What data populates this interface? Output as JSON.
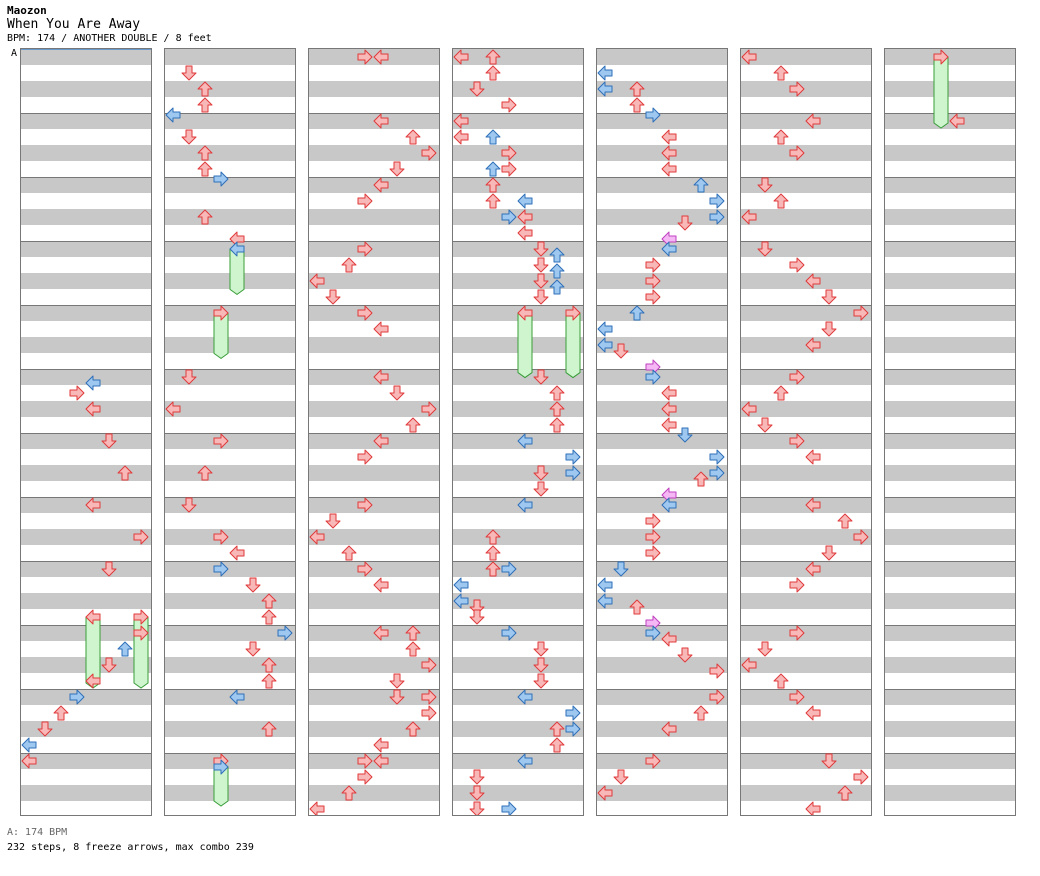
{
  "song": {
    "artist": "Maozon",
    "title": "When You Are Away",
    "info": "BPM: 174 / ANOTHER DOUBLE / 8 feet"
  },
  "bpm_marker": "A",
  "footer": {
    "bpm_legend": "A: 174 BPM",
    "stats": "232 steps, 8 freeze arrows, max combo 239"
  },
  "colors": {
    "red_fill": "#f8b8b8",
    "red_stroke": "#e03a3a",
    "blue_fill": "#9ec8f0",
    "blue_stroke": "#2f6fb8",
    "pink_fill": "#f5b8f5",
    "pink_stroke": "#c040c0",
    "freeze_fill": "#cff5cf",
    "freeze_stroke": "#3a9e3a",
    "band": "#c8c8c8"
  },
  "chart": {
    "columns": 7,
    "measures_per_column": 12,
    "lanes": 8,
    "lane_direction_names": [
      "left",
      "down",
      "up",
      "right",
      "left",
      "down",
      "up",
      "right"
    ],
    "notes": [
      [
        0,
        11,
        0,
        "red"
      ],
      [
        0,
        10.75,
        0,
        "blue"
      ],
      [
        0,
        10.5,
        1,
        "red"
      ],
      [
        0,
        10.25,
        2,
        "red"
      ],
      [
        0,
        10,
        3,
        "blue"
      ],
      [
        0,
        9.75,
        4,
        "red"
      ],
      [
        0,
        9.5,
        5,
        "red"
      ],
      [
        0,
        9.25,
        6,
        "blue"
      ],
      [
        0,
        9,
        7,
        "red"
      ],
      [
        0,
        8.75,
        4,
        "red"
      ],
      [
        0,
        8.75,
        7,
        "red"
      ],
      [
        0,
        8,
        5,
        "red"
      ],
      [
        0,
        7.5,
        7,
        "red"
      ],
      [
        0,
        7,
        4,
        "red"
      ],
      [
        0,
        6.5,
        6,
        "red"
      ],
      [
        0,
        6,
        5,
        "red"
      ],
      [
        0,
        5.5,
        4,
        "red"
      ],
      [
        0,
        5.25,
        3,
        "red"
      ],
      [
        0,
        5.1,
        4,
        "blue"
      ],
      [
        1,
        0.25,
        1,
        "red"
      ],
      [
        1,
        0.5,
        2,
        "red"
      ],
      [
        1,
        0.75,
        2,
        "red"
      ],
      [
        1,
        0.9,
        0,
        "blue"
      ],
      [
        1,
        1.25,
        1,
        "red"
      ],
      [
        1,
        1.5,
        2,
        "red"
      ],
      [
        1,
        1.75,
        2,
        "red"
      ],
      [
        1,
        1.9,
        3,
        "blue"
      ],
      [
        1,
        2.5,
        2,
        "red"
      ],
      [
        1,
        2.85,
        4,
        "red"
      ],
      [
        1,
        3,
        4,
        "blue"
      ],
      [
        1,
        4,
        3,
        "red"
      ],
      [
        1,
        5,
        1,
        "red"
      ],
      [
        1,
        5.5,
        0,
        "red"
      ],
      [
        1,
        6,
        3,
        "red"
      ],
      [
        1,
        6.5,
        2,
        "red"
      ],
      [
        1,
        7,
        1,
        "red"
      ],
      [
        1,
        7.5,
        3,
        "red"
      ],
      [
        1,
        7.75,
        4,
        "red"
      ],
      [
        1,
        8,
        3,
        "blue"
      ],
      [
        1,
        8.25,
        5,
        "red"
      ],
      [
        1,
        8.5,
        6,
        "red"
      ],
      [
        1,
        8.75,
        6,
        "red"
      ],
      [
        1,
        9,
        7,
        "blue"
      ],
      [
        1,
        9.25,
        5,
        "red"
      ],
      [
        1,
        9.5,
        6,
        "red"
      ],
      [
        1,
        9.75,
        6,
        "red"
      ],
      [
        1,
        10,
        4,
        "blue"
      ],
      [
        1,
        10.5,
        6,
        "red"
      ],
      [
        1,
        11,
        3,
        "red"
      ],
      [
        1,
        11.1,
        3,
        "blue"
      ],
      [
        2,
        0,
        3,
        "red"
      ],
      [
        2,
        0,
        4,
        "red"
      ],
      [
        2,
        1,
        4,
        "red"
      ],
      [
        2,
        1.25,
        6,
        "red"
      ],
      [
        2,
        1.5,
        7,
        "red"
      ],
      [
        2,
        1.75,
        5,
        "red"
      ],
      [
        2,
        2,
        4,
        "red"
      ],
      [
        2,
        2.25,
        3,
        "red"
      ],
      [
        2,
        3,
        3,
        "red"
      ],
      [
        2,
        3.25,
        2,
        "red"
      ],
      [
        2,
        3.5,
        0,
        "red"
      ],
      [
        2,
        3.75,
        1,
        "red"
      ],
      [
        2,
        4,
        3,
        "red"
      ],
      [
        2,
        4.25,
        4,
        "red"
      ],
      [
        2,
        5,
        4,
        "red"
      ],
      [
        2,
        5.25,
        5,
        "red"
      ],
      [
        2,
        5.5,
        7,
        "red"
      ],
      [
        2,
        5.75,
        6,
        "red"
      ],
      [
        2,
        6,
        4,
        "red"
      ],
      [
        2,
        6.25,
        3,
        "red"
      ],
      [
        2,
        7,
        3,
        "red"
      ],
      [
        2,
        7.25,
        1,
        "red"
      ],
      [
        2,
        7.5,
        0,
        "red"
      ],
      [
        2,
        7.75,
        2,
        "red"
      ],
      [
        2,
        8,
        3,
        "red"
      ],
      [
        2,
        8.25,
        4,
        "red"
      ],
      [
        2,
        9,
        4,
        "red"
      ],
      [
        2,
        9,
        6,
        "red"
      ],
      [
        2,
        9.25,
        6,
        "red"
      ],
      [
        2,
        9.5,
        7,
        "red"
      ],
      [
        2,
        9.75,
        5,
        "red"
      ],
      [
        2,
        10,
        5,
        "red"
      ],
      [
        2,
        10,
        7,
        "red"
      ],
      [
        2,
        10.25,
        7,
        "red"
      ],
      [
        2,
        10.5,
        6,
        "red"
      ],
      [
        2,
        10.75,
        4,
        "red"
      ],
      [
        2,
        11,
        3,
        "red"
      ],
      [
        2,
        11,
        4,
        "red"
      ],
      [
        2,
        11.25,
        3,
        "red"
      ],
      [
        2,
        11.5,
        2,
        "red"
      ],
      [
        2,
        11.75,
        0,
        "red"
      ],
      [
        3,
        0,
        0,
        "red"
      ],
      [
        3,
        0,
        2,
        "red"
      ],
      [
        3,
        0.25,
        2,
        "red"
      ],
      [
        3,
        0.5,
        1,
        "red"
      ],
      [
        3,
        0.75,
        3,
        "red"
      ],
      [
        3,
        1,
        0,
        "red"
      ],
      [
        3,
        1.25,
        0,
        "red"
      ],
      [
        3,
        1.25,
        2,
        "blue"
      ],
      [
        3,
        1.5,
        3,
        "red"
      ],
      [
        3,
        1.75,
        2,
        "blue"
      ],
      [
        3,
        1.75,
        3,
        "red"
      ],
      [
        3,
        2,
        2,
        "red"
      ],
      [
        3,
        2.25,
        2,
        "red"
      ],
      [
        3,
        2.25,
        4,
        "blue"
      ],
      [
        3,
        2.5,
        3,
        "blue"
      ],
      [
        3,
        2.5,
        4,
        "red"
      ],
      [
        3,
        2.75,
        4,
        "red"
      ],
      [
        3,
        3,
        5,
        "red"
      ],
      [
        3,
        3.1,
        6,
        "blue"
      ],
      [
        3,
        3.25,
        5,
        "red"
      ],
      [
        3,
        3.35,
        6,
        "blue"
      ],
      [
        3,
        3.5,
        5,
        "red"
      ],
      [
        3,
        3.6,
        6,
        "blue"
      ],
      [
        3,
        3.75,
        5,
        "red"
      ],
      [
        3,
        4,
        4,
        "red"
      ],
      [
        3,
        4,
        7,
        "red"
      ],
      [
        3,
        5,
        5,
        "red"
      ],
      [
        3,
        5.25,
        6,
        "red"
      ],
      [
        3,
        5.5,
        6,
        "red"
      ],
      [
        3,
        5.75,
        6,
        "red"
      ],
      [
        3,
        6,
        4,
        "blue"
      ],
      [
        3,
        6.25,
        7,
        "blue"
      ],
      [
        3,
        6.5,
        7,
        "blue"
      ],
      [
        3,
        6.5,
        5,
        "red"
      ],
      [
        3,
        6.75,
        5,
        "red"
      ],
      [
        3,
        7,
        4,
        "blue"
      ],
      [
        3,
        7.5,
        2,
        "red"
      ],
      [
        3,
        7.75,
        2,
        "red"
      ],
      [
        3,
        8,
        2,
        "red"
      ],
      [
        3,
        8,
        3,
        "blue"
      ],
      [
        3,
        8.25,
        0,
        "blue"
      ],
      [
        3,
        8.5,
        0,
        "blue"
      ],
      [
        3,
        8.6,
        1,
        "red"
      ],
      [
        3,
        8.75,
        1,
        "red"
      ],
      [
        3,
        9,
        3,
        "blue"
      ],
      [
        3,
        9.25,
        5,
        "red"
      ],
      [
        3,
        9.5,
        5,
        "red"
      ],
      [
        3,
        9.75,
        5,
        "red"
      ],
      [
        3,
        10,
        4,
        "blue"
      ],
      [
        3,
        10.25,
        7,
        "blue"
      ],
      [
        3,
        10.5,
        7,
        "blue"
      ],
      [
        3,
        10.5,
        6,
        "red"
      ],
      [
        3,
        10.75,
        6,
        "red"
      ],
      [
        3,
        11,
        4,
        "blue"
      ],
      [
        3,
        11.25,
        1,
        "red"
      ],
      [
        3,
        11.5,
        1,
        "red"
      ],
      [
        3,
        11.75,
        1,
        "red"
      ],
      [
        3,
        12,
        3,
        "blue"
      ],
      [
        4,
        0.25,
        0,
        "blue"
      ],
      [
        4,
        0.5,
        0,
        "blue"
      ],
      [
        4,
        0.5,
        2,
        "red"
      ],
      [
        4,
        0.75,
        2,
        "red"
      ],
      [
        4,
        0.9,
        3,
        "blue"
      ],
      [
        4,
        1.25,
        4,
        "red"
      ],
      [
        4,
        1.5,
        4,
        "red"
      ],
      [
        4,
        1.75,
        4,
        "red"
      ],
      [
        4,
        2,
        6,
        "blue"
      ],
      [
        4,
        2.25,
        7,
        "blue"
      ],
      [
        4,
        2.5,
        7,
        "blue"
      ],
      [
        4,
        2.6,
        5,
        "red"
      ],
      [
        4,
        2.85,
        4,
        "pink"
      ],
      [
        4,
        3,
        4,
        "blue"
      ],
      [
        4,
        3.25,
        3,
        "red"
      ],
      [
        4,
        3.5,
        3,
        "red"
      ],
      [
        4,
        3.75,
        3,
        "red"
      ],
      [
        4,
        4,
        2,
        "blue"
      ],
      [
        4,
        4.25,
        0,
        "blue"
      ],
      [
        4,
        4.5,
        0,
        "blue"
      ],
      [
        4,
        4.6,
        1,
        "red"
      ],
      [
        4,
        4.85,
        3,
        "pink"
      ],
      [
        4,
        5,
        3,
        "blue"
      ],
      [
        4,
        5.25,
        4,
        "red"
      ],
      [
        4,
        5.5,
        4,
        "red"
      ],
      [
        4,
        5.75,
        4,
        "red"
      ],
      [
        4,
        5.9,
        5,
        "blue"
      ],
      [
        4,
        6.25,
        7,
        "blue"
      ],
      [
        4,
        6.5,
        7,
        "blue"
      ],
      [
        4,
        6.6,
        6,
        "red"
      ],
      [
        4,
        6.85,
        4,
        "pink"
      ],
      [
        4,
        7,
        4,
        "blue"
      ],
      [
        4,
        7.25,
        3,
        "red"
      ],
      [
        4,
        7.5,
        3,
        "red"
      ],
      [
        4,
        7.75,
        3,
        "red"
      ],
      [
        4,
        8,
        1,
        "blue"
      ],
      [
        4,
        8.25,
        0,
        "blue"
      ],
      [
        4,
        8.5,
        0,
        "blue"
      ],
      [
        4,
        8.6,
        2,
        "red"
      ],
      [
        4,
        8.85,
        3,
        "pink"
      ],
      [
        4,
        9,
        3,
        "blue"
      ],
      [
        4,
        9.1,
        4,
        "red"
      ],
      [
        4,
        9.35,
        5,
        "red"
      ],
      [
        4,
        9.6,
        7,
        "red"
      ],
      [
        4,
        10,
        7,
        "red"
      ],
      [
        4,
        10.25,
        6,
        "red"
      ],
      [
        4,
        10.5,
        4,
        "red"
      ],
      [
        4,
        11,
        3,
        "red"
      ],
      [
        4,
        11.25,
        1,
        "red"
      ],
      [
        4,
        11.5,
        0,
        "red"
      ],
      [
        5,
        0,
        0,
        "red"
      ],
      [
        5,
        0.25,
        2,
        "red"
      ],
      [
        5,
        0.5,
        3,
        "red"
      ],
      [
        5,
        1,
        4,
        "red"
      ],
      [
        5,
        1.25,
        2,
        "red"
      ],
      [
        5,
        1.5,
        3,
        "red"
      ],
      [
        5,
        2,
        1,
        "red"
      ],
      [
        5,
        2.25,
        2,
        "red"
      ],
      [
        5,
        2.5,
        0,
        "red"
      ],
      [
        5,
        3,
        1,
        "red"
      ],
      [
        5,
        3.25,
        3,
        "red"
      ],
      [
        5,
        3.5,
        4,
        "red"
      ],
      [
        5,
        3.75,
        5,
        "red"
      ],
      [
        5,
        4,
        7,
        "red"
      ],
      [
        5,
        4.25,
        5,
        "red"
      ],
      [
        5,
        4.5,
        4,
        "red"
      ],
      [
        5,
        5,
        3,
        "red"
      ],
      [
        5,
        5.25,
        2,
        "red"
      ],
      [
        5,
        5.5,
        0,
        "red"
      ],
      [
        5,
        5.75,
        1,
        "red"
      ],
      [
        5,
        6,
        3,
        "red"
      ],
      [
        5,
        6.25,
        4,
        "red"
      ],
      [
        5,
        7,
        4,
        "red"
      ],
      [
        5,
        7.25,
        6,
        "red"
      ],
      [
        5,
        7.5,
        7,
        "red"
      ],
      [
        5,
        7.75,
        5,
        "red"
      ],
      [
        5,
        8,
        4,
        "red"
      ],
      [
        5,
        8.25,
        3,
        "red"
      ],
      [
        5,
        9,
        3,
        "red"
      ],
      [
        5,
        9.25,
        1,
        "red"
      ],
      [
        5,
        9.5,
        0,
        "red"
      ],
      [
        5,
        9.75,
        2,
        "red"
      ],
      [
        5,
        10,
        3,
        "red"
      ],
      [
        5,
        10.25,
        4,
        "red"
      ],
      [
        5,
        11,
        5,
        "red"
      ],
      [
        5,
        11.25,
        7,
        "red"
      ],
      [
        5,
        11.5,
        6,
        "red"
      ],
      [
        5,
        11.75,
        4,
        "red"
      ],
      [
        6,
        0,
        3,
        "red"
      ],
      [
        6,
        1,
        4,
        "red"
      ]
    ],
    "freezes": [
      [
        0,
        8.75,
        9.75,
        4
      ],
      [
        0,
        8.75,
        9.75,
        7
      ],
      [
        1,
        3,
        3.6,
        4
      ],
      [
        1,
        4,
        4.6,
        3
      ],
      [
        1,
        11.1,
        11.6,
        3
      ],
      [
        3,
        4,
        4.9,
        4
      ],
      [
        3,
        4,
        4.9,
        7
      ],
      [
        6,
        0,
        1,
        3
      ]
    ]
  }
}
